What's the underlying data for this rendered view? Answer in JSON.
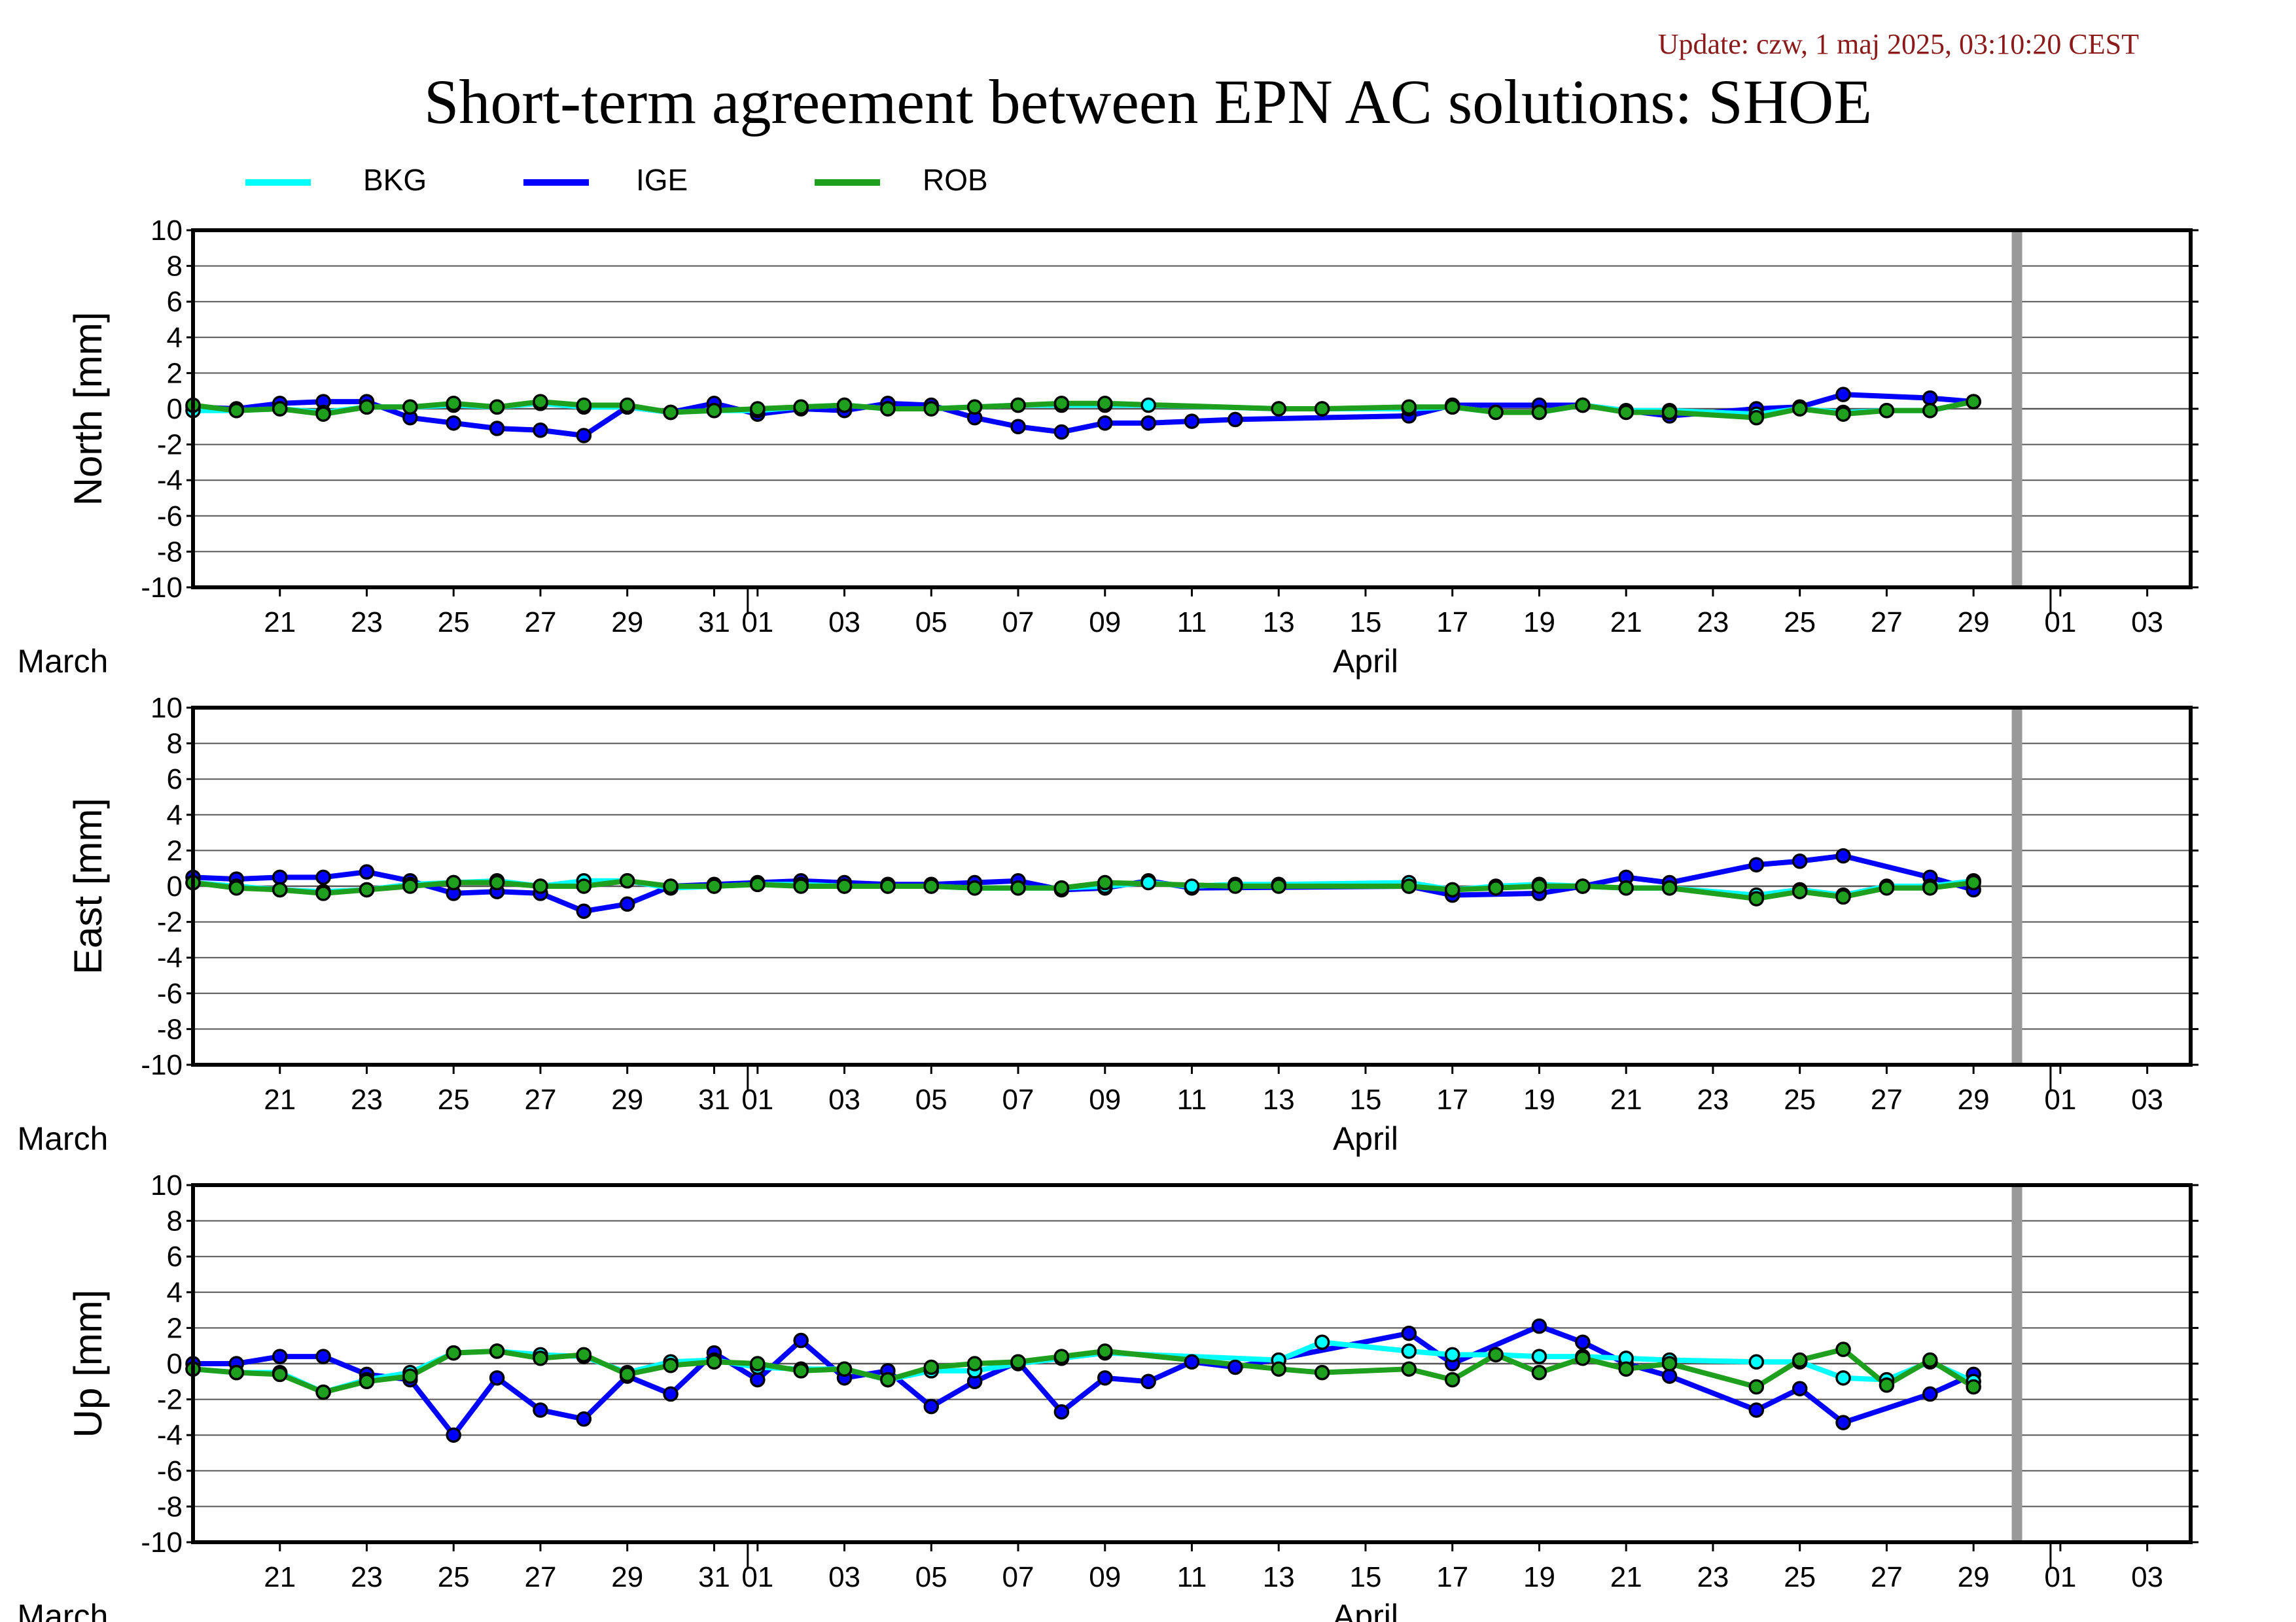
{
  "update_text": "Update: czw, 1 maj 2025, 03:10:20 CEST",
  "title": "Short-term agreement between EPN AC solutions: SHOE",
  "colors": {
    "BKG": "#00ffff",
    "IGE": "#0000ff",
    "ROB": "#1ea01e",
    "grid": "#555555",
    "gap_bar": "#999999",
    "frame": "#000000"
  },
  "legend": [
    {
      "name": "BKG",
      "color": "#00ffff"
    },
    {
      "name": "IGE",
      "color": "#0000ff"
    },
    {
      "name": "ROB",
      "color": "#1ea01e"
    }
  ],
  "chart_data": {
    "type": "line",
    "x_unit": "day of 2025 (March–May)",
    "xlim": [
      "2025-03-19",
      "2025-05-04"
    ],
    "xticks": [
      "21",
      "23",
      "25",
      "27",
      "29",
      "31",
      "01",
      "03",
      "05",
      "07",
      "09",
      "11",
      "13",
      "15",
      "17",
      "19",
      "21",
      "23",
      "25",
      "27",
      "29",
      "01",
      "03"
    ],
    "month_labels": [
      "March",
      "April"
    ],
    "shaded_day": "2025-04-30",
    "ylim": [
      -10,
      10
    ],
    "yticks": [
      "10",
      "8",
      "6",
      "4",
      "2",
      "0",
      "-2",
      "-4",
      "-6",
      "-8",
      "-10"
    ],
    "panels": [
      {
        "ylabel": "North [mm]",
        "series": [
          {
            "name": "IGE",
            "x": [
              "03-19",
              "03-20",
              "03-21",
              "03-22",
              "03-23",
              "03-24",
              "03-25",
              "03-26",
              "03-27",
              "03-28",
              "03-29",
              "03-30",
              "03-31",
              "04-01",
              "04-02",
              "04-03",
              "04-04",
              "04-05",
              "04-06",
              "04-07",
              "04-08",
              "04-09",
              "04-10",
              "04-11",
              "04-12",
              "04-16",
              "04-17",
              "04-19",
              "04-20",
              "04-22",
              "04-24",
              "04-25",
              "04-26",
              "04-28",
              "04-29"
            ],
            "y": [
              0.1,
              0.0,
              0.3,
              0.4,
              0.4,
              -0.5,
              -0.8,
              -1.1,
              -1.2,
              -1.5,
              0.1,
              -0.2,
              0.3,
              -0.3,
              0.0,
              -0.1,
              0.3,
              0.2,
              -0.5,
              -1.0,
              -1.3,
              -0.8,
              -0.8,
              -0.7,
              -0.6,
              -0.4,
              0.2,
              0.2,
              0.2,
              -0.4,
              0.0,
              0.1,
              0.8,
              0.6,
              0.4
            ]
          },
          {
            "name": "BKG",
            "x": [
              "03-19",
              "03-20",
              "03-21",
              "03-22",
              "03-23",
              "03-24",
              "03-25",
              "03-26",
              "03-27",
              "03-28",
              "03-29",
              "03-30",
              "03-31",
              "04-01",
              "04-02",
              "04-03",
              "04-04",
              "04-05",
              "04-06",
              "04-07",
              "04-08",
              "04-09",
              "04-10",
              "04-13",
              "04-14",
              "04-16",
              "04-17",
              "04-18",
              "04-19",
              "04-20",
              "04-21",
              "04-22",
              "04-24",
              "04-25",
              "04-26",
              "04-27",
              "04-28",
              "04-29"
            ],
            "y": [
              -0.1,
              -0.1,
              0.0,
              -0.2,
              0.1,
              0.1,
              0.2,
              0.1,
              0.3,
              0.1,
              0.1,
              -0.2,
              -0.1,
              -0.1,
              0.1,
              0.2,
              0.0,
              0.0,
              0.1,
              0.2,
              0.2,
              0.2,
              0.2,
              0.0,
              0.0,
              0.0,
              0.1,
              -0.2,
              -0.2,
              0.2,
              -0.1,
              -0.1,
              -0.3,
              0.0,
              -0.2,
              -0.1,
              -0.1,
              0.4
            ]
          },
          {
            "name": "ROB",
            "x": [
              "03-19",
              "03-20",
              "03-21",
              "03-22",
              "03-23",
              "03-24",
              "03-25",
              "03-26",
              "03-27",
              "03-28",
              "03-29",
              "03-30",
              "03-31",
              "04-01",
              "04-02",
              "04-03",
              "04-04",
              "04-05",
              "04-06",
              "04-07",
              "04-08",
              "04-09",
              "04-13",
              "04-14",
              "04-16",
              "04-17",
              "04-18",
              "04-19",
              "04-20",
              "04-21",
              "04-22",
              "04-24",
              "04-25",
              "04-26",
              "04-27",
              "04-28",
              "04-29"
            ],
            "y": [
              0.2,
              -0.1,
              0.0,
              -0.3,
              0.1,
              0.1,
              0.3,
              0.1,
              0.4,
              0.2,
              0.2,
              -0.2,
              -0.1,
              0.0,
              0.1,
              0.2,
              0.0,
              0.0,
              0.1,
              0.2,
              0.3,
              0.3,
              0.0,
              0.0,
              0.1,
              0.1,
              -0.2,
              -0.2,
              0.2,
              -0.2,
              -0.2,
              -0.5,
              0.0,
              -0.3,
              -0.1,
              -0.1,
              0.4
            ]
          }
        ]
      },
      {
        "ylabel": "East [mm]",
        "series": [
          {
            "name": "IGE",
            "x": [
              "03-19",
              "03-20",
              "03-21",
              "03-22",
              "03-23",
              "03-24",
              "03-25",
              "03-26",
              "03-27",
              "03-28",
              "03-29",
              "03-30",
              "03-31",
              "04-01",
              "04-02",
              "04-03",
              "04-04",
              "04-05",
              "04-06",
              "04-07",
              "04-08",
              "04-09",
              "04-10",
              "04-11",
              "04-16",
              "04-17",
              "04-19",
              "04-20",
              "04-21",
              "04-22",
              "04-24",
              "04-25",
              "04-26",
              "04-28",
              "04-29"
            ],
            "y": [
              0.5,
              0.4,
              0.5,
              0.5,
              0.8,
              0.3,
              -0.4,
              -0.3,
              -0.4,
              -1.4,
              -1.0,
              0.0,
              0.1,
              0.2,
              0.3,
              0.2,
              0.1,
              0.1,
              0.2,
              0.3,
              -0.2,
              -0.1,
              0.3,
              -0.1,
              0.0,
              -0.5,
              -0.4,
              0.0,
              0.5,
              0.2,
              1.2,
              1.4,
              1.7,
              0.5,
              -0.2
            ]
          },
          {
            "name": "BKG",
            "x": [
              "03-19",
              "03-20",
              "03-21",
              "03-22",
              "03-23",
              "03-24",
              "03-25",
              "03-26",
              "03-27",
              "03-28",
              "03-29",
              "03-30",
              "03-31",
              "04-01",
              "04-02",
              "04-03",
              "04-04",
              "04-05",
              "04-06",
              "04-07",
              "04-08",
              "04-09",
              "04-10",
              "04-11",
              "04-12",
              "04-13",
              "04-16",
              "04-17",
              "04-18",
              "04-19",
              "04-20",
              "04-21",
              "04-22",
              "04-24",
              "04-25",
              "04-26",
              "04-27",
              "04-28",
              "04-29"
            ],
            "y": [
              0.2,
              0.0,
              -0.2,
              -0.3,
              -0.2,
              0.1,
              0.2,
              0.3,
              0.0,
              0.3,
              0.3,
              -0.1,
              0.0,
              0.1,
              0.1,
              0.0,
              0.0,
              0.0,
              -0.1,
              -0.1,
              -0.1,
              0.0,
              0.2,
              0.0,
              0.1,
              0.1,
              0.2,
              -0.2,
              0.0,
              0.1,
              0.0,
              -0.1,
              -0.1,
              -0.5,
              -0.2,
              -0.5,
              0.0,
              0.0,
              0.3
            ]
          },
          {
            "name": "ROB",
            "x": [
              "03-19",
              "03-20",
              "03-21",
              "03-22",
              "03-23",
              "03-24",
              "03-25",
              "03-26",
              "03-27",
              "03-28",
              "03-29",
              "03-30",
              "03-31",
              "04-01",
              "04-02",
              "04-03",
              "04-04",
              "04-05",
              "04-06",
              "04-07",
              "04-08",
              "04-09",
              "04-12",
              "04-13",
              "04-16",
              "04-17",
              "04-18",
              "04-19",
              "04-20",
              "04-21",
              "04-22",
              "04-24",
              "04-25",
              "04-26",
              "04-27",
              "04-28",
              "04-29"
            ],
            "y": [
              0.2,
              -0.1,
              -0.2,
              -0.4,
              -0.2,
              0.0,
              0.2,
              0.2,
              0.0,
              0.0,
              0.3,
              0.0,
              0.0,
              0.1,
              0.0,
              0.0,
              0.0,
              0.0,
              -0.1,
              -0.1,
              -0.1,
              0.2,
              0.0,
              0.0,
              0.0,
              -0.2,
              -0.1,
              0.0,
              0.0,
              -0.1,
              -0.1,
              -0.7,
              -0.3,
              -0.6,
              -0.1,
              -0.1,
              0.2
            ]
          }
        ]
      },
      {
        "ylabel": "Up [mm]",
        "series": [
          {
            "name": "IGE",
            "x": [
              "03-19",
              "03-20",
              "03-21",
              "03-22",
              "03-23",
              "03-24",
              "03-25",
              "03-26",
              "03-27",
              "03-28",
              "03-29",
              "03-30",
              "03-31",
              "04-01",
              "04-02",
              "04-03",
              "04-04",
              "04-05",
              "04-06",
              "04-07",
              "04-08",
              "04-09",
              "04-10",
              "04-11",
              "04-12",
              "04-16",
              "04-17",
              "04-19",
              "04-20",
              "04-21",
              "04-22",
              "04-24",
              "04-25",
              "04-26",
              "04-28",
              "04-29"
            ],
            "y": [
              0.0,
              0.0,
              0.4,
              0.4,
              -0.6,
              -0.9,
              -4.0,
              -0.8,
              -2.6,
              -3.1,
              -0.7,
              -1.7,
              0.6,
              -0.9,
              1.3,
              -0.8,
              -0.4,
              -2.4,
              -1.0,
              0.1,
              -2.7,
              -0.8,
              -1.0,
              0.1,
              -0.2,
              1.7,
              0.0,
              2.1,
              1.2,
              0.0,
              -0.7,
              -2.6,
              -1.4,
              -3.3,
              -1.7,
              -0.6
            ]
          },
          {
            "name": "BKG",
            "x": [
              "03-19",
              "03-20",
              "03-21",
              "03-22",
              "03-23",
              "03-24",
              "03-25",
              "03-26",
              "03-27",
              "03-28",
              "03-29",
              "03-30",
              "03-31",
              "04-01",
              "04-02",
              "04-03",
              "04-04",
              "04-05",
              "04-06",
              "04-07",
              "04-08",
              "04-09",
              "04-13",
              "04-14",
              "04-16",
              "04-17",
              "04-18",
              "04-19",
              "04-20",
              "04-21",
              "04-22",
              "04-24",
              "04-25",
              "04-26",
              "04-27",
              "04-28",
              "04-29"
            ],
            "y": [
              -0.3,
              -0.5,
              -0.5,
              -1.6,
              -0.9,
              -0.5,
              0.6,
              0.7,
              0.5,
              0.4,
              -0.5,
              0.1,
              0.2,
              -0.2,
              -0.3,
              -0.3,
              -0.9,
              -0.4,
              -0.4,
              0.0,
              0.3,
              0.6,
              0.2,
              1.2,
              0.7,
              0.5,
              0.5,
              0.4,
              0.4,
              0.3,
              0.2,
              0.1,
              0.1,
              -0.8,
              -0.9,
              0.1,
              -1.0
            ]
          },
          {
            "name": "ROB",
            "x": [
              "03-19",
              "03-20",
              "03-21",
              "03-22",
              "03-23",
              "03-24",
              "03-25",
              "03-26",
              "03-27",
              "03-28",
              "03-29",
              "03-30",
              "03-31",
              "04-01",
              "04-02",
              "04-03",
              "04-04",
              "04-05",
              "04-06",
              "04-07",
              "04-08",
              "04-09",
              "04-13",
              "04-14",
              "04-16",
              "04-17",
              "04-18",
              "04-19",
              "04-20",
              "04-21",
              "04-22",
              "04-24",
              "04-25",
              "04-26",
              "04-27",
              "04-28",
              "04-29"
            ],
            "y": [
              -0.3,
              -0.5,
              -0.6,
              -1.6,
              -1.0,
              -0.7,
              0.6,
              0.7,
              0.3,
              0.5,
              -0.6,
              -0.1,
              0.1,
              0.0,
              -0.4,
              -0.3,
              -0.9,
              -0.2,
              0.0,
              0.1,
              0.4,
              0.7,
              -0.3,
              -0.5,
              -0.3,
              -0.9,
              0.5,
              -0.5,
              0.3,
              -0.3,
              0.0,
              -1.3,
              0.2,
              0.8,
              -1.2,
              0.2,
              -1.3
            ]
          }
        ]
      }
    ]
  }
}
